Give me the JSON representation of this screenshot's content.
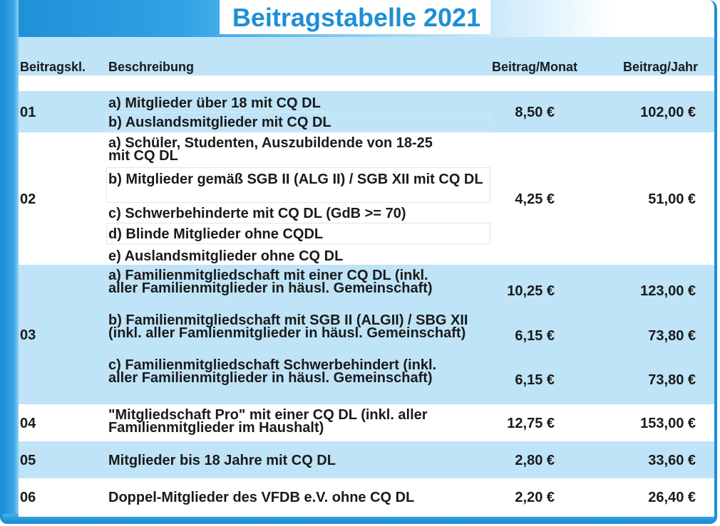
{
  "title": "Beitragstabelle 2021",
  "headers": {
    "class": "Beitragskl.",
    "description": "Beschreibung",
    "monthly": "Beitrag/Monat",
    "yearly": "Beitrag/Jahr"
  },
  "rows": [
    {
      "class": "01",
      "items": [
        "a) Mitglieder über 18 mit CQ DL",
        "b) Auslandsmitglieder mit CQ DL"
      ],
      "monthly": "8,50 €",
      "yearly": "102,00 €"
    },
    {
      "class": "02",
      "items": [
        "a) Schüler, Studenten, Auszubildende von 18-25 mit CQ DL",
        "b) Mitglieder gemäß SGB II (ALG II) / SGB XII mit CQ DL",
        "c) Schwerbehinderte mit CQ DL (GdB >= 70)",
        "d) Blinde Mitglieder ohne CQDL",
        "e) Auslandsmitglieder ohne CQ DL"
      ],
      "monthly": "4,25 €",
      "yearly": "51,00 €"
    },
    {
      "class": "03",
      "items": [
        {
          "text": "a) Familienmitgliedschaft mit einer CQ DL (inkl. aller Familienmitglieder in häusl. Gemeinschaft)",
          "monthly": "10,25 €",
          "yearly": "123,00 €"
        },
        {
          "text": "b) Familienmitgliedschaft mit SGB II (ALGII) / SBG XII (inkl. aller Famlienmitglieder in häusl. Gemeinschaft)",
          "monthly": "6,15 €",
          "yearly": "73,80 €"
        },
        {
          "text": "c) Familienmitgliedschaft Schwerbehindert (inkl. aller Familienmitglieder in häusl. Gemeinschaft)",
          "monthly": "6,15 €",
          "yearly": "73,80 €"
        }
      ]
    },
    {
      "class": "04",
      "items": [
        "\"Mitgliedschaft Pro\" mit einer CQ DL (inkl. aller Familienmitglieder im Haushalt)"
      ],
      "monthly": "12,75 €",
      "yearly": "153,00 €"
    },
    {
      "class": "05",
      "items": [
        "Mitglieder bis 18 Jahre mit CQ DL"
      ],
      "monthly": "2,80 €",
      "yearly": "33,60 €"
    },
    {
      "class": "06",
      "items": [
        "Doppel-Mitglieder des VFDB e.V. ohne CQ DL"
      ],
      "monthly": "2,20 €",
      "yearly": "26,40 €"
    }
  ]
}
